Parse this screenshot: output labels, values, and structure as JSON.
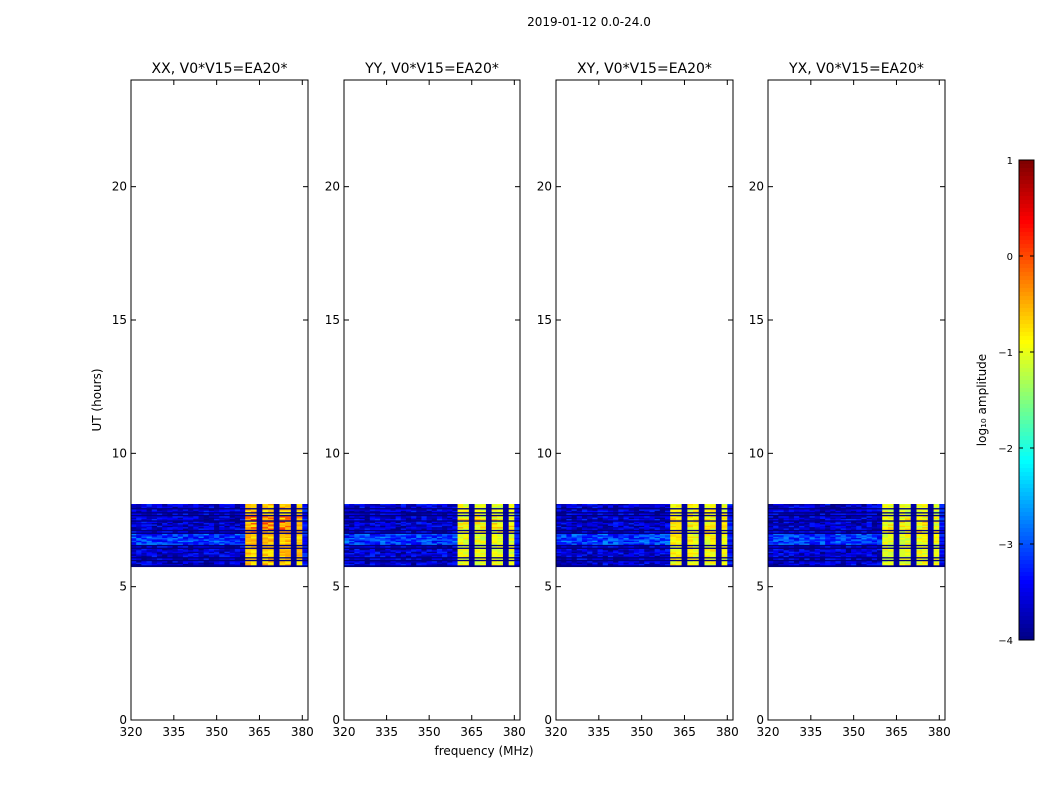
{
  "figure": {
    "suptitle": "2019-01-12 0.0-24.0",
    "xlabel": "frequency (MHz)",
    "ylabel": "UT (hours)"
  },
  "colorbar": {
    "label": "log₁₀ amplitude",
    "range": [
      -4,
      1
    ],
    "ticks": [
      "1",
      "0",
      "−1",
      "−2",
      "−3",
      "−4"
    ],
    "tick_values": [
      1,
      0,
      -1,
      -2,
      -3,
      -4
    ],
    "colormap": "jet"
  },
  "chart_data": [
    {
      "type": "heatmap",
      "title": "XX, V0*V15=EA20*",
      "xlim": [
        320,
        382
      ],
      "ylim": [
        0,
        24
      ],
      "xticks": [
        320,
        335,
        350,
        365,
        380
      ],
      "yticks": [
        0,
        5,
        10,
        15,
        20
      ],
      "data_time_range": [
        5.75,
        8.1
      ],
      "band_split_mhz": [
        360,
        380
      ],
      "background_log_amp": -3.6,
      "band_log_amp": -0.6,
      "peak_log_amp": 0.0
    },
    {
      "type": "heatmap",
      "title": "YY, V0*V15=EA20*",
      "xlim": [
        320,
        382
      ],
      "ylim": [
        0,
        24
      ],
      "xticks": [
        320,
        335,
        350,
        365,
        380
      ],
      "yticks": [
        0,
        5,
        10,
        15,
        20
      ],
      "data_time_range": [
        5.75,
        8.1
      ],
      "band_split_mhz": [
        360,
        380
      ],
      "background_log_amp": -3.6,
      "band_log_amp": -1.0,
      "peak_log_amp": -0.6
    },
    {
      "type": "heatmap",
      "title": "XY, V0*V15=EA20*",
      "xlim": [
        320,
        382
      ],
      "ylim": [
        0,
        24
      ],
      "xticks": [
        320,
        335,
        350,
        365,
        380
      ],
      "yticks": [
        0,
        5,
        10,
        15,
        20
      ],
      "data_time_range": [
        5.75,
        8.1
      ],
      "band_split_mhz": [
        360,
        380
      ],
      "background_log_amp": -3.6,
      "band_log_amp": -0.9,
      "peak_log_amp": -0.7
    },
    {
      "type": "heatmap",
      "title": "YX, V0*V15=EA20*",
      "xlim": [
        320,
        382
      ],
      "ylim": [
        0,
        24
      ],
      "xticks": [
        320,
        335,
        350,
        365,
        380
      ],
      "yticks": [
        0,
        5,
        10,
        15,
        20
      ],
      "data_time_range": [
        5.75,
        8.1
      ],
      "band_split_mhz": [
        360,
        380
      ],
      "background_log_amp": -3.6,
      "band_log_amp": -1.0,
      "peak_log_amp": -0.7
    }
  ]
}
